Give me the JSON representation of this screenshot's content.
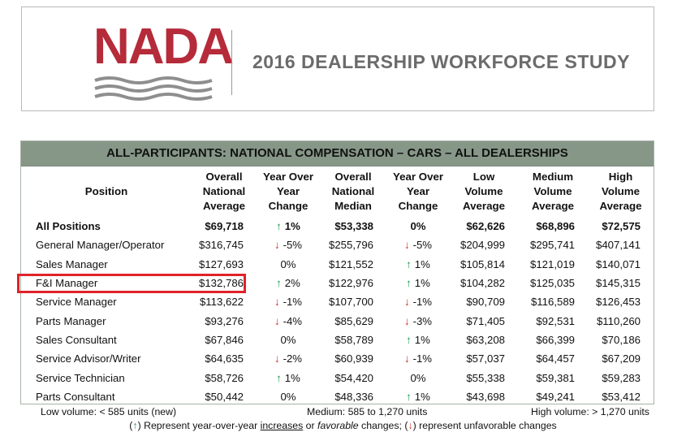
{
  "header": {
    "logo_text": "NADA",
    "study_title": "2016 DEALERSHIP WORKFORCE STUDY"
  },
  "table": {
    "title": "ALL-PARTICIPANTS: NATIONAL COMPENSATION – CARS – ALL DEALERSHIPS",
    "columns": {
      "position": "Position",
      "overall_avg": [
        "Overall",
        "National",
        "Average"
      ],
      "yoy1": [
        "Year Over",
        "Year Change"
      ],
      "overall_median": [
        "Overall",
        "National",
        "Median"
      ],
      "yoy2": [
        "Year Over",
        "Year Change"
      ],
      "low": [
        "Low",
        "Volume",
        "Average"
      ],
      "medium": [
        "Medium",
        "Volume",
        "Average"
      ],
      "high": [
        "High",
        "Volume",
        "Average"
      ]
    },
    "rows": [
      {
        "position": "All Positions",
        "avg": "$69,718",
        "yoy1": "1%",
        "yoy1_dir": "up",
        "median": "$53,338",
        "yoy2": "0%",
        "yoy2_dir": "none",
        "low": "$62,626",
        "medium": "$68,896",
        "high": "$72,575"
      },
      {
        "position": "General Manager/Operator",
        "avg": "$316,745",
        "yoy1": "-5%",
        "yoy1_dir": "down",
        "median": "$255,796",
        "yoy2": "-5%",
        "yoy2_dir": "down",
        "low": "$204,999",
        "medium": "$295,741",
        "high": "$407,141"
      },
      {
        "position": "Sales Manager",
        "avg": "$127,693",
        "yoy1": "0%",
        "yoy1_dir": "none",
        "median": "$121,552",
        "yoy2": "1%",
        "yoy2_dir": "up",
        "low": "$105,814",
        "medium": "$121,019",
        "high": "$140,071"
      },
      {
        "position": "F&I Manager",
        "avg": "$132,786",
        "yoy1": "2%",
        "yoy1_dir": "up",
        "median": "$122,976",
        "yoy2": "1%",
        "yoy2_dir": "up",
        "low": "$104,282",
        "medium": "$125,035",
        "high": "$145,315"
      },
      {
        "position": "Service Manager",
        "avg": "$113,622",
        "yoy1": "-1%",
        "yoy1_dir": "down",
        "median": "$107,700",
        "yoy2": "-1%",
        "yoy2_dir": "down",
        "low": "$90,709",
        "medium": "$116,589",
        "high": "$126,453"
      },
      {
        "position": "Parts Manager",
        "avg": "$93,276",
        "yoy1": "-4%",
        "yoy1_dir": "down",
        "median": "$85,629",
        "yoy2": "-3%",
        "yoy2_dir": "down",
        "low": "$71,405",
        "medium": "$92,531",
        "high": "$110,260"
      },
      {
        "position": "Sales Consultant",
        "avg": "$67,846",
        "yoy1": "0%",
        "yoy1_dir": "none",
        "median": "$58,789",
        "yoy2": "1%",
        "yoy2_dir": "up",
        "low": "$63,208",
        "medium": "$66,399",
        "high": "$70,186"
      },
      {
        "position": "Service Advisor/Writer",
        "avg": "$64,635",
        "yoy1": "-2%",
        "yoy1_dir": "down",
        "median": "$60,939",
        "yoy2": "-1%",
        "yoy2_dir": "down",
        "low": "$57,037",
        "medium": "$64,457",
        "high": "$67,209"
      },
      {
        "position": "Service Technician",
        "avg": "$58,726",
        "yoy1": "1%",
        "yoy1_dir": "up",
        "median": "$54,420",
        "yoy2": "0%",
        "yoy2_dir": "none",
        "low": "$55,338",
        "medium": "$59,381",
        "high": "$59,283"
      },
      {
        "position": "Parts Consultant",
        "avg": "$50,442",
        "yoy1": "0%",
        "yoy1_dir": "none",
        "median": "$48,336",
        "yoy2": "1%",
        "yoy2_dir": "up",
        "low": "$43,698",
        "medium": "$49,241",
        "high": "$53,412"
      }
    ],
    "highlighted_row": "F&I Manager"
  },
  "footer": {
    "low_volume": "Low volume: < 585 units (new)",
    "medium_volume": "Medium: 585 to 1,270 units",
    "high_volume": "High volume: > 1,270 units",
    "legend_open_paren": "(",
    "legend_up_arrow": "↑",
    "legend_part1": ") Represent year-over-year ",
    "legend_increases": "increases",
    "legend_or": " or ",
    "legend_favorable": "favorable",
    "legend_part2": " changes; (",
    "legend_down_arrow": "↓",
    "legend_part3": ") represent unfavorable changes"
  },
  "colors": {
    "brand_red": "#b52b3a",
    "title_bar": "#869787",
    "up_arrow": "#1e9a4c",
    "down_arrow": "#d7261e",
    "highlight_box": "#e0222a"
  },
  "icons": {
    "up": "↑",
    "down": "↓"
  }
}
